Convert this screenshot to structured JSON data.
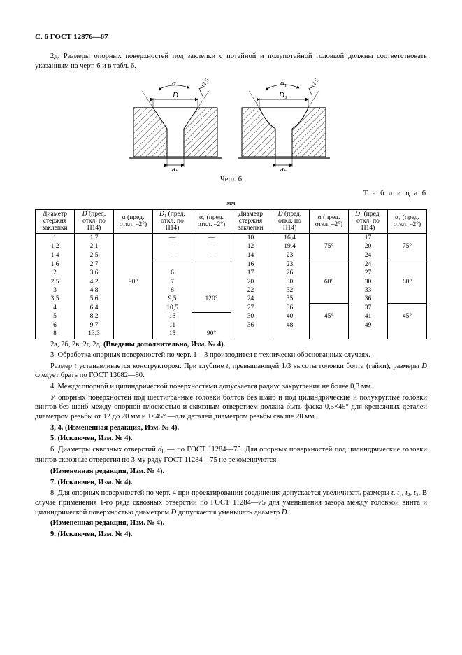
{
  "header": {
    "text": "С. 6 ГОСТ 12876—67"
  },
  "para_2d": "2д. Размеры опорных поверхностей под заклепки с потайной и полупотайной головкой должны соответствовать указанным на черт. 6 и в табл. 6.",
  "figure": {
    "labels": {
      "alpha": "α",
      "alpha1": "α₁",
      "D": "D",
      "D1": "D₁",
      "dh": "dₕ",
      "r125a": "12,5",
      "r125b": "12,5"
    },
    "caption": "Черт. 6"
  },
  "table6": {
    "label": "Т а б л и ц а  6",
    "mm": "мм",
    "cols": [
      "Диаметр стержня заклепки",
      "D (пред. откл. по Н14)",
      "α (пред. откл. –2°)",
      "D₁ (пред. откл. по Н14)",
      "α₁ (пред. откл. –2°)",
      "Диаметр стержня заклепки",
      "D (пред. откл. по Н14)",
      "α (пред. откл. –2°)",
      "D₁ (пред. откл. по Н14)",
      "α₁ (пред. откл. –2°)"
    ],
    "leftRows": [
      {
        "d": "1",
        "D": "1,7",
        "a": "",
        "D1": "—",
        "a1": "—"
      },
      {
        "d": "1,2",
        "D": "2,1",
        "a": "",
        "D1": "—",
        "a1": "—"
      },
      {
        "d": "1,4",
        "D": "2,5",
        "a": "",
        "D1": "—",
        "a1": "—",
        "lastDash": true
      },
      {
        "d": "1,6",
        "D": "2,7",
        "a": "",
        "D1": "",
        "a1": ""
      },
      {
        "d": "2",
        "D": "3,6",
        "a": "",
        "D1": "6",
        "a1": ""
      },
      {
        "d": "2,5",
        "D": "4,2",
        "a": "90°",
        "D1": "7",
        "a1": ""
      },
      {
        "d": "3",
        "D": "4,8",
        "a": "",
        "D1": "8",
        "a1": ""
      },
      {
        "d": "3,5",
        "D": "5,6",
        "a": "",
        "D1": "9,5",
        "a1": "120°"
      },
      {
        "d": "4",
        "D": "6,4",
        "a": "",
        "D1": "10,5",
        "a1": ""
      },
      {
        "d": "5",
        "D": "8,2",
        "a": "",
        "D1": "13",
        "a1": ""
      },
      {
        "d": "6",
        "D": "9,7",
        "a": "",
        "D1": "11",
        "a1": ""
      },
      {
        "d": "8",
        "D": "13,3",
        "a": "",
        "D1": "15",
        "a1": "90°"
      }
    ],
    "rightRows": [
      {
        "d": "10",
        "D": "16,4",
        "a": "",
        "D1": "17",
        "a1": ""
      },
      {
        "d": "12",
        "D": "19,4",
        "a": "75°",
        "D1": "20",
        "a1": "75°"
      },
      {
        "d": "14",
        "D": "23",
        "a": "",
        "D1": "24",
        "a1": ""
      },
      {
        "d": "16",
        "D": "23",
        "a": "",
        "D1": "24",
        "a1": ""
      },
      {
        "d": "17",
        "D": "26",
        "a": "",
        "D1": "27",
        "a1": ""
      },
      {
        "d": "20",
        "D": "30",
        "a": "60°",
        "D1": "30",
        "a1": "60°"
      },
      {
        "d": "22",
        "D": "32",
        "a": "",
        "D1": "33",
        "a1": ""
      },
      {
        "d": "24",
        "D": "35",
        "a": "",
        "D1": "36",
        "a1": ""
      },
      {
        "d": "27",
        "D": "36",
        "a": "",
        "D1": "37",
        "a1": ""
      },
      {
        "d": "30",
        "D": "40",
        "a": "45°",
        "D1": "41",
        "a1": "45°"
      },
      {
        "d": "36",
        "D": "48",
        "a": "",
        "D1": "49",
        "a1": ""
      }
    ]
  },
  "body": {
    "p_2a": {
      "pre": "2а, 2б, 2в, 2г, 2д. ",
      "bold": "(Введены дополнительно, Изм. № 4)."
    },
    "p3": "3. Обработка опорных поверхностей по черт. 1—3 производится в технически обоснованных случаях.",
    "p3a": "Размер t устанавливается конструктором. При глубине t, превышающей 1/3 высоты головки болта (гайки), размеры D следует брать по ГОСТ 13682—80.",
    "p4": "4. Между опорной и цилиндрической поверхностями допускается радиус закругления не более 0,3 мм.",
    "p4a": "У опорных поверхностей под шестигранные головки болтов без шайб и под цилиндрические и полукруглые головки винтов без шайб между опорной плоскостью и сквозным отверстием должна быть фаска 0,5×45° для крепежных деталей диаметром резьбы от 12 до 20 мм и 1×45° —для деталей диаметром резьбы свыше 20 мм.",
    "p34b": "3, 4. (Измененная редакция, Изм. № 4).",
    "p5": "5. (Исключен, Изм. № 4).",
    "p6": "6. Диаметры сквозных отверстий dₕ — по ГОСТ 11284—75. Для опорных поверхностей под цилиндрические головки винтов сквозные отверстия по 3-му ряду ГОСТ 11284—75 не рекомендуются.",
    "p6b": "(Измененная редакция, Изм. № 4).",
    "p7": "7. (Исключен, Изм. № 4).",
    "p8": "8. Для опорных поверхностей по черт. 4 при проектировании соединения допускается увеличивать размеры t, t₁, t₂, t₃. В случае применения 1-го ряда сквозных отверстий по ГОСТ 11284—75 для уменьшения зазора между головкой винта и цилиндрической поверхностью диаметром D допускается уменьшать диаметр D.",
    "p8b": "(Измененная редакция, Изм. № 4).",
    "p9": "9. (Исключен, Изм. № 4)."
  }
}
